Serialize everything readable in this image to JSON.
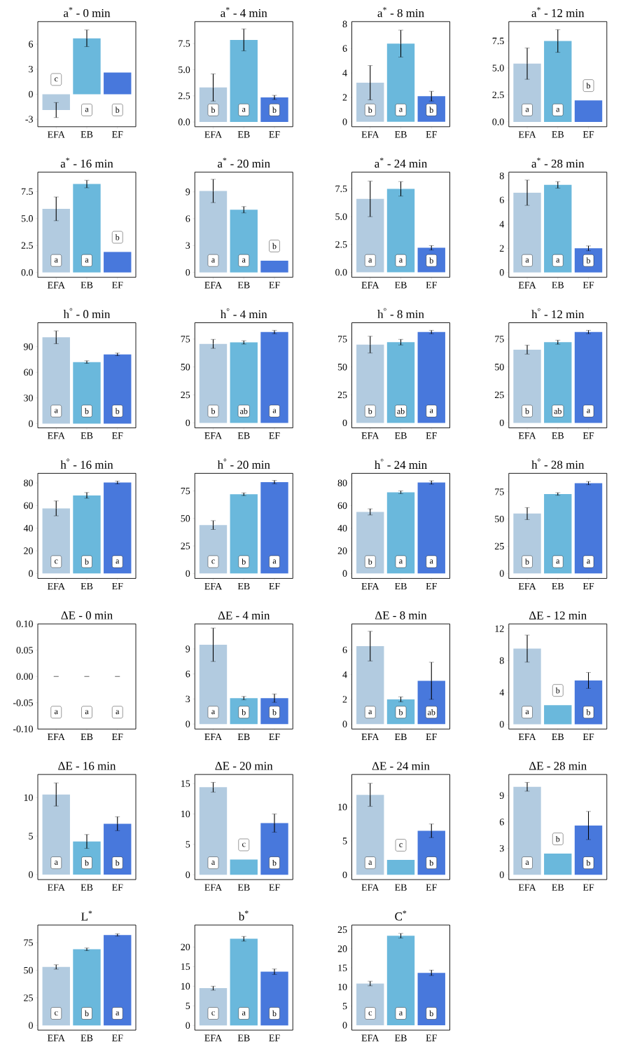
{
  "chart_data": [
    {
      "type": "bar",
      "title": "a$^{*}$ - 0 min",
      "categories": [
        "EFA",
        "EB",
        "EF"
      ],
      "values": [
        -1.9,
        6.7,
        2.6
      ],
      "errors": [
        0.9,
        1.0,
        null
      ],
      "colors": [
        "#b2cbe0",
        "#6ab8dc",
        "#4878dc"
      ],
      "ylim": [
        -3.9,
        8.7
      ],
      "yticks": [
        -3,
        0,
        3,
        6
      ],
      "annotations": [
        {
          "text": "c",
          "x": "EFA"
        },
        {
          "text": "a",
          "x": "EB"
        },
        {
          "text": "b",
          "x": "EF"
        }
      ]
    },
    {
      "type": "bar",
      "title": "a$^{*}$ - 4 min",
      "categories": [
        "EFA",
        "EB",
        "EF"
      ],
      "values": [
        3.3,
        7.85,
        2.35
      ],
      "errors": [
        1.3,
        1.05,
        0.2
      ],
      "colors": [
        "#b2cbe0",
        "#6ab8dc",
        "#4878dc"
      ],
      "ylim": [
        -0.45,
        9.6
      ],
      "yticks": [
        {
          "value": 0,
          "label": "0.0"
        },
        {
          "value": 2.5,
          "label": "2.5"
        },
        {
          "value": 5,
          "label": "5.0"
        },
        {
          "value": 7.5,
          "label": "7.5"
        }
      ],
      "annotations": [
        {
          "text": "b",
          "x": "EFA"
        },
        {
          "text": "a",
          "x": "EB"
        },
        {
          "text": "b",
          "x": "EF"
        }
      ]
    },
    {
      "type": "bar",
      "title": "a$^{*}$ - 8 min",
      "categories": [
        "EFA",
        "EB",
        "EF"
      ],
      "values": [
        3.2,
        6.4,
        2.1
      ],
      "errors": [
        1.4,
        1.1,
        0.4
      ],
      "colors": [
        "#b2cbe0",
        "#6ab8dc",
        "#4878dc"
      ],
      "ylim": [
        -0.4,
        8.2
      ],
      "yticks": [
        0,
        2,
        4,
        6,
        8
      ],
      "annotations": [
        {
          "text": "b",
          "x": "EFA"
        },
        {
          "text": "a",
          "x": "EB"
        },
        {
          "text": "b",
          "x": "EF"
        }
      ]
    },
    {
      "type": "bar",
      "title": "a$^{*}$ - 12 min",
      "categories": [
        "EFA",
        "EB",
        "EF"
      ],
      "values": [
        5.4,
        7.5,
        2.0
      ],
      "errors": [
        1.45,
        1.05,
        null
      ],
      "colors": [
        "#b2cbe0",
        "#6ab8dc",
        "#4878dc"
      ],
      "ylim": [
        -0.45,
        9.3
      ],
      "yticks": [
        {
          "value": 0,
          "label": "0.0"
        },
        {
          "value": 2.5,
          "label": "2.5"
        },
        {
          "value": 5,
          "label": "5.0"
        },
        {
          "value": 7.5,
          "label": "7.5"
        }
      ],
      "annotations": [
        {
          "text": "a",
          "x": "EFA"
        },
        {
          "text": "a",
          "x": "EB"
        },
        {
          "text": "b",
          "x": "EF"
        }
      ]
    },
    {
      "type": "bar",
      "title": "a$^{*}$ - 16 min",
      "categories": [
        "EFA",
        "EB",
        "EF"
      ],
      "values": [
        5.9,
        8.2,
        1.9
      ],
      "errors": [
        1.1,
        0.35,
        null
      ],
      "colors": [
        "#b2cbe0",
        "#6ab8dc",
        "#4878dc"
      ],
      "ylim": [
        -0.45,
        9.3
      ],
      "yticks": [
        {
          "value": 0,
          "label": "0.0"
        },
        {
          "value": 2.5,
          "label": "2.5"
        },
        {
          "value": 5,
          "label": "5.0"
        },
        {
          "value": 7.5,
          "label": "7.5"
        }
      ],
      "annotations": [
        {
          "text": "a",
          "x": "EFA"
        },
        {
          "text": "a",
          "x": "EB"
        },
        {
          "text": "b",
          "x": "EF"
        }
      ]
    },
    {
      "type": "bar",
      "title": "a$^{*}$ - 20 min",
      "categories": [
        "EFA",
        "EB",
        "EF"
      ],
      "values": [
        9.1,
        7.0,
        1.3
      ],
      "errors": [
        1.3,
        0.35,
        null
      ],
      "colors": [
        "#b2cbe0",
        "#6ab8dc",
        "#4878dc"
      ],
      "ylim": [
        -0.55,
        11.2
      ],
      "yticks": [
        0,
        3,
        6,
        9
      ],
      "annotations": [
        {
          "text": "a",
          "x": "EFA"
        },
        {
          "text": "a",
          "x": "EB"
        },
        {
          "text": "b",
          "x": "EF"
        }
      ]
    },
    {
      "type": "bar",
      "title": "a$^{*}$ - 24 min",
      "categories": [
        "EFA",
        "EB",
        "EF"
      ],
      "values": [
        6.6,
        7.5,
        2.2
      ],
      "errors": [
        1.6,
        0.65,
        0.2
      ],
      "colors": [
        "#b2cbe0",
        "#6ab8dc",
        "#4878dc"
      ],
      "ylim": [
        -0.45,
        9.0
      ],
      "yticks": [
        {
          "value": 0,
          "label": "0.0"
        },
        {
          "value": 2.5,
          "label": "2.5"
        },
        {
          "value": 5,
          "label": "5.0"
        },
        {
          "value": 7.5,
          "label": "7.5"
        }
      ],
      "annotations": [
        {
          "text": "a",
          "x": "EFA"
        },
        {
          "text": "a",
          "x": "EB"
        },
        {
          "text": "b",
          "x": "EF"
        }
      ]
    },
    {
      "type": "bar",
      "title": "a$^{*}$ - 28 min",
      "categories": [
        "EFA",
        "EB",
        "EF"
      ],
      "values": [
        6.6,
        7.25,
        2.0
      ],
      "errors": [
        1.05,
        0.27,
        0.2
      ],
      "colors": [
        "#b2cbe0",
        "#6ab8dc",
        "#4878dc"
      ],
      "ylim": [
        -0.4,
        8.3
      ],
      "yticks": [
        0,
        2,
        4,
        6,
        8
      ],
      "annotations": [
        {
          "text": "a",
          "x": "EFA"
        },
        {
          "text": "a",
          "x": "EB"
        },
        {
          "text": "b",
          "x": "EF"
        }
      ]
    },
    {
      "type": "bar",
      "title": "h$^{°}$ - 0 min",
      "categories": [
        "EFA",
        "EB",
        "EF"
      ],
      "values": [
        101,
        72,
        81
      ],
      "errors": [
        7.5,
        1.5,
        1.5
      ],
      "colors": [
        "#b2cbe0",
        "#6ab8dc",
        "#4878dc"
      ],
      "ylim": [
        -5,
        118
      ],
      "yticks": [
        0,
        30,
        60,
        90
      ],
      "annotations": [
        {
          "text": "a",
          "x": "EFA"
        },
        {
          "text": "b",
          "x": "EB"
        },
        {
          "text": "b",
          "x": "EF"
        }
      ]
    },
    {
      "type": "bar",
      "title": "h$^{°}$ - 4 min",
      "categories": [
        "EFA",
        "EB",
        "EF"
      ],
      "values": [
        70.7,
        72,
        81.3
      ],
      "errors": [
        4,
        1.5,
        1.5
      ],
      "colors": [
        "#b2cbe0",
        "#6ab8dc",
        "#4878dc"
      ],
      "ylim": [
        -4.5,
        89.6
      ],
      "yticks": [
        0,
        25,
        50,
        75
      ],
      "annotations": [
        {
          "text": "b",
          "x": "EFA"
        },
        {
          "text": "ab",
          "x": "EB"
        },
        {
          "text": "a",
          "x": "EF"
        }
      ]
    },
    {
      "type": "bar",
      "title": "h$^{°}$ - 8 min",
      "categories": [
        "EFA",
        "EB",
        "EF"
      ],
      "values": [
        70,
        72.2,
        81.3
      ],
      "errors": [
        7.5,
        2.5,
        1.5
      ],
      "colors": [
        "#b2cbe0",
        "#6ab8dc",
        "#4878dc"
      ],
      "ylim": [
        -4.5,
        89.6
      ],
      "yticks": [
        0,
        25,
        50,
        75
      ],
      "annotations": [
        {
          "text": "b",
          "x": "EFA"
        },
        {
          "text": "ab",
          "x": "EB"
        },
        {
          "text": "a",
          "x": "EF"
        }
      ]
    },
    {
      "type": "bar",
      "title": "h$^{°}$ - 12 min",
      "categories": [
        "EFA",
        "EB",
        "EF"
      ],
      "values": [
        65.5,
        72.2,
        81.3
      ],
      "errors": [
        4,
        1.8,
        1.5
      ],
      "colors": [
        "#b2cbe0",
        "#6ab8dc",
        "#4878dc"
      ],
      "ylim": [
        -4.5,
        89.6
      ],
      "yticks": [
        0,
        25,
        50,
        75
      ],
      "annotations": [
        {
          "text": "b",
          "x": "EFA"
        },
        {
          "text": "ab",
          "x": "EB"
        },
        {
          "text": "a",
          "x": "EF"
        }
      ]
    },
    {
      "type": "bar",
      "title": "h$^{°}$ - 16 min",
      "categories": [
        "EFA",
        "EB",
        "EF"
      ],
      "values": [
        57.5,
        69,
        80.4
      ],
      "errors": [
        6.6,
        2.5,
        1.2
      ],
      "colors": [
        "#b2cbe0",
        "#6ab8dc",
        "#4878dc"
      ],
      "ylim": [
        -4.4,
        88.5
      ],
      "yticks": [
        0,
        20,
        40,
        60,
        80
      ],
      "annotations": [
        {
          "text": "c",
          "x": "EFA"
        },
        {
          "text": "b",
          "x": "EB"
        },
        {
          "text": "a",
          "x": "EF"
        }
      ]
    },
    {
      "type": "bar",
      "title": "h$^{°}$ - 20 min",
      "categories": [
        "EFA",
        "EB",
        "EF"
      ],
      "values": [
        44,
        72,
        83
      ],
      "errors": [
        4,
        1.2,
        1.5
      ],
      "colors": [
        "#b2cbe0",
        "#6ab8dc",
        "#4878dc"
      ],
      "ylim": [
        -4.5,
        91
      ],
      "yticks": [
        0,
        25,
        50,
        75
      ],
      "annotations": [
        {
          "text": "c",
          "x": "EFA"
        },
        {
          "text": "b",
          "x": "EB"
        },
        {
          "text": "a",
          "x": "EF"
        }
      ]
    },
    {
      "type": "bar",
      "title": "h$^{°}$ - 24 min",
      "categories": [
        "EFA",
        "EB",
        "EF"
      ],
      "values": [
        54.4,
        71.8,
        80.4
      ],
      "errors": [
        2.7,
        1.2,
        1.5
      ],
      "colors": [
        "#b2cbe0",
        "#6ab8dc",
        "#4878dc"
      ],
      "ylim": [
        -4.4,
        88.5
      ],
      "yticks": [
        0,
        20,
        40,
        60,
        80
      ],
      "annotations": [
        {
          "text": "b",
          "x": "EFA"
        },
        {
          "text": "a",
          "x": "EB"
        },
        {
          "text": "a",
          "x": "EF"
        }
      ]
    },
    {
      "type": "bar",
      "title": "h$^{°}$ - 28 min",
      "categories": [
        "EFA",
        "EB",
        "EF"
      ],
      "values": [
        55,
        73,
        83
      ],
      "errors": [
        5.5,
        1.2,
        1.5
      ],
      "colors": [
        "#b2cbe0",
        "#6ab8dc",
        "#4878dc"
      ],
      "ylim": [
        -4.6,
        92
      ],
      "yticks": [
        0,
        25,
        50,
        75
      ],
      "annotations": [
        {
          "text": "b",
          "x": "EFA"
        },
        {
          "text": "a",
          "x": "EB"
        },
        {
          "text": "a",
          "x": "EF"
        }
      ]
    },
    {
      "type": "bar",
      "title": "ΔE - 0 min",
      "categories": [
        "EFA",
        "EB",
        "EF"
      ],
      "values": [
        0,
        0,
        0
      ],
      "errors": [
        0,
        0,
        0
      ],
      "colors": [
        "#b2cbe0",
        "#6ab8dc",
        "#4878dc"
      ],
      "ylim": [
        -0.1,
        0.1
      ],
      "yticks": [
        {
          "value": -0.1,
          "label": "-0.10"
        },
        {
          "value": -0.05,
          "label": "-0.05"
        },
        {
          "value": 0,
          "label": "0.00"
        },
        {
          "value": 0.05,
          "label": "0.05"
        },
        {
          "value": 0.1,
          "label": "0.10"
        }
      ],
      "annotations": [
        {
          "text": "a",
          "x": "EFA"
        },
        {
          "text": "a",
          "x": "EB"
        },
        {
          "text": "a",
          "x": "EF"
        }
      ]
    },
    {
      "type": "bar",
      "title": "ΔE - 4 min",
      "categories": [
        "EFA",
        "EB",
        "EF"
      ],
      "values": [
        9.5,
        3.1,
        3.1
      ],
      "errors": [
        2,
        0.2,
        0.5
      ],
      "colors": [
        "#b2cbe0",
        "#6ab8dc",
        "#4878dc"
      ],
      "ylim": [
        -0.6,
        12
      ],
      "yticks": [
        0,
        3,
        6,
        9
      ],
      "annotations": [
        {
          "text": "a",
          "x": "EFA"
        },
        {
          "text": "b",
          "x": "EB"
        },
        {
          "text": "b",
          "x": "EF"
        }
      ]
    },
    {
      "type": "bar",
      "title": "ΔE - 8 min",
      "categories": [
        "EFA",
        "EB",
        "EF"
      ],
      "values": [
        6.3,
        2.0,
        3.5
      ],
      "errors": [
        1.2,
        0.2,
        1.5
      ],
      "colors": [
        "#b2cbe0",
        "#6ab8dc",
        "#4878dc"
      ],
      "ylim": [
        -0.4,
        8.1
      ],
      "yticks": [
        0,
        2,
        4,
        6
      ],
      "annotations": [
        {
          "text": "a",
          "x": "EFA"
        },
        {
          "text": "b",
          "x": "EB"
        },
        {
          "text": "ab",
          "x": "EF"
        }
      ]
    },
    {
      "type": "bar",
      "title": "ΔE - 12 min",
      "categories": [
        "EFA",
        "EB",
        "EF"
      ],
      "values": [
        9.5,
        2.4,
        5.5
      ],
      "errors": [
        1.7,
        null,
        1
      ],
      "colors": [
        "#b2cbe0",
        "#6ab8dc",
        "#4878dc"
      ],
      "ylim": [
        -0.6,
        12.6
      ],
      "yticks": [
        0,
        4,
        8,
        12
      ],
      "annotations": [
        {
          "text": "a",
          "x": "EFA"
        },
        {
          "text": "b",
          "x": "EB"
        },
        {
          "text": "b",
          "x": "EF"
        }
      ]
    },
    {
      "type": "bar",
      "title": "ΔE - 16 min",
      "categories": [
        "EFA",
        "EB",
        "EF"
      ],
      "values": [
        10.4,
        4.3,
        6.6
      ],
      "errors": [
        1.5,
        0.9,
        0.9
      ],
      "colors": [
        "#b2cbe0",
        "#6ab8dc",
        "#4878dc"
      ],
      "ylim": [
        -0.65,
        13
      ],
      "yticks": [
        0,
        5,
        10
      ],
      "annotations": [
        {
          "text": "a",
          "x": "EFA"
        },
        {
          "text": "b",
          "x": "EB"
        },
        {
          "text": "b",
          "x": "EF"
        }
      ]
    },
    {
      "type": "bar",
      "title": "ΔE - 20 min",
      "categories": [
        "EFA",
        "EB",
        "EF"
      ],
      "values": [
        14.4,
        2.5,
        8.5
      ],
      "errors": [
        0.8,
        null,
        1.5
      ],
      "colors": [
        "#b2cbe0",
        "#6ab8dc",
        "#4878dc"
      ],
      "ylim": [
        -0.8,
        16.5
      ],
      "yticks": [
        0,
        5,
        10,
        15
      ],
      "annotations": [
        {
          "text": "a",
          "x": "EFA"
        },
        {
          "text": "c",
          "x": "EB"
        },
        {
          "text": "b",
          "x": "EF"
        }
      ]
    },
    {
      "type": "bar",
      "title": "ΔE - 24 min",
      "categories": [
        "EFA",
        "EB",
        "EF"
      ],
      "values": [
        11.8,
        2.2,
        6.5
      ],
      "errors": [
        1.7,
        null,
        1
      ],
      "colors": [
        "#b2cbe0",
        "#6ab8dc",
        "#4878dc"
      ],
      "ylim": [
        -0.7,
        14.8
      ],
      "yticks": [
        0,
        5,
        10
      ],
      "annotations": [
        {
          "text": "a",
          "x": "EFA"
        },
        {
          "text": "c",
          "x": "EB"
        },
        {
          "text": "b",
          "x": "EF"
        }
      ]
    },
    {
      "type": "bar",
      "title": "ΔE - 28 min",
      "categories": [
        "EFA",
        "EB",
        "EF"
      ],
      "values": [
        10,
        2.4,
        5.6
      ],
      "errors": [
        0.5,
        null,
        1.6
      ],
      "colors": [
        "#b2cbe0",
        "#6ab8dc",
        "#4878dc"
      ],
      "ylim": [
        -0.55,
        11.4
      ],
      "yticks": [
        0,
        3,
        6,
        9
      ],
      "annotations": [
        {
          "text": "a",
          "x": "EFA"
        },
        {
          "text": "b",
          "x": "EB"
        },
        {
          "text": "b",
          "x": "EF"
        }
      ]
    },
    {
      "type": "bar",
      "title": "L$^{*}$",
      "categories": [
        "EFA",
        "EB",
        "EF"
      ],
      "values": [
        53,
        69,
        82
      ],
      "errors": [
        2,
        1.2,
        1
      ],
      "colors": [
        "#b2cbe0",
        "#6ab8dc",
        "#4878dc"
      ],
      "ylim": [
        -4.3,
        91
      ],
      "yticks": [
        0,
        25,
        50,
        75
      ],
      "annotations": [
        {
          "text": "c",
          "x": "EFA"
        },
        {
          "text": "b",
          "x": "EB"
        },
        {
          "text": "a",
          "x": "EF"
        }
      ]
    },
    {
      "type": "bar",
      "title": "b$^{*}$",
      "categories": [
        "EFA",
        "EB",
        "EF"
      ],
      "values": [
        9.5,
        22.1,
        13.7
      ],
      "errors": [
        0.5,
        0.6,
        0.7
      ],
      "colors": [
        "#b2cbe0",
        "#6ab8dc",
        "#4878dc"
      ],
      "ylim": [
        -1.2,
        25.6
      ],
      "yticks": [
        0,
        5,
        10,
        15,
        20
      ],
      "annotations": [
        {
          "text": "c",
          "x": "EFA"
        },
        {
          "text": "a",
          "x": "EB"
        },
        {
          "text": "b",
          "x": "EF"
        }
      ]
    },
    {
      "type": "bar",
      "title": "C$^{*}$",
      "categories": [
        "EFA",
        "EB",
        "EF"
      ],
      "values": [
        10.9,
        23.4,
        13.7
      ],
      "errors": [
        0.6,
        0.6,
        0.7
      ],
      "colors": [
        "#b2cbe0",
        "#6ab8dc",
        "#4878dc"
      ],
      "ylim": [
        -1.3,
        26.2
      ],
      "yticks": [
        0,
        5,
        10,
        15,
        20,
        25
      ],
      "annotations": [
        {
          "text": "c",
          "x": "EFA"
        },
        {
          "text": "a",
          "x": "EB"
        },
        {
          "text": "b",
          "x": "EF"
        }
      ]
    }
  ]
}
